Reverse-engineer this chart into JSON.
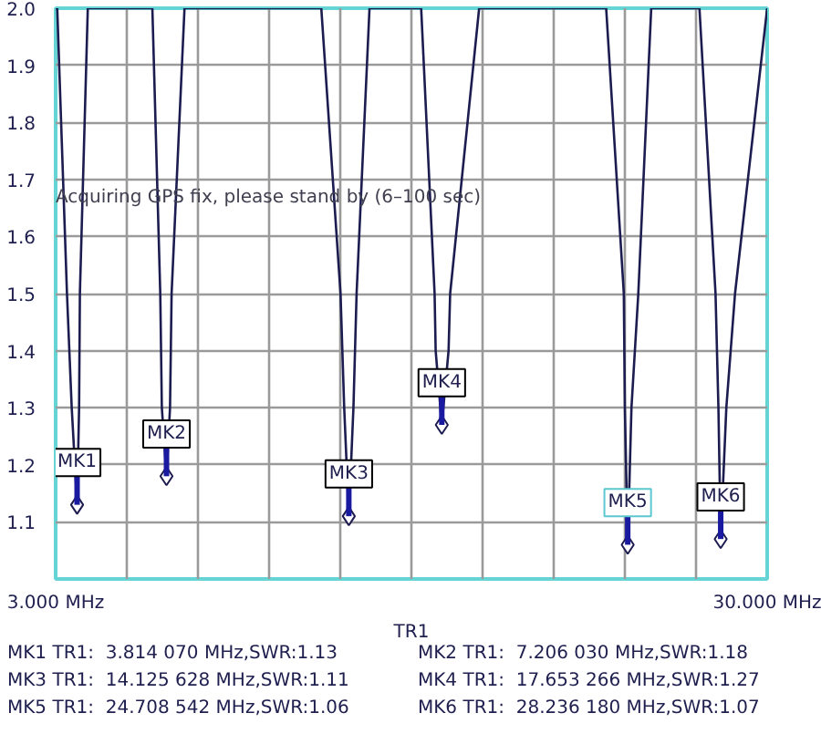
{
  "chart_data": {
    "type": "line",
    "xlabel": "TR1",
    "xlim": [
      3,
      30
    ],
    "xticks": [
      {
        "value": 3,
        "label": "3.000 MHz"
      },
      {
        "value": 5.7,
        "label": null
      },
      {
        "value": 8.4,
        "label": null
      },
      {
        "value": 11.1,
        "label": null
      },
      {
        "value": 13.8,
        "label": null
      },
      {
        "value": 16.5,
        "label": null
      },
      {
        "value": 19.2,
        "label": null
      },
      {
        "value": 21.9,
        "label": null
      },
      {
        "value": 24.6,
        "label": null
      },
      {
        "value": 27.3,
        "label": null
      },
      {
        "value": 30,
        "label": "30.000 MHz"
      }
    ],
    "ylim": [
      1.0,
      2.0
    ],
    "yticks": [
      {
        "value": 1.0,
        "label": null
      },
      {
        "value": 1.1,
        "label": "1.1"
      },
      {
        "value": 1.2,
        "label": "1.2"
      },
      {
        "value": 1.3,
        "label": "1.3"
      },
      {
        "value": 1.4,
        "label": "1.4"
      },
      {
        "value": 1.5,
        "label": "1.5"
      },
      {
        "value": 1.6,
        "label": "1.6"
      },
      {
        "value": 1.7,
        "label": "1.7"
      },
      {
        "value": 1.8,
        "label": "1.8"
      },
      {
        "value": 1.9,
        "label": "1.9"
      },
      {
        "value": 2.0,
        "label": "2.0"
      }
    ],
    "grid": true,
    "series": [
      {
        "color": "#1c1c50",
        "x": [
          3.0,
          3.06,
          3.43,
          3.61,
          3.814,
          3.89,
          3.92,
          4.22,
          6.67,
          6.97,
          7.03,
          7.206,
          7.34,
          7.4,
          7.89,
          13.08,
          13.81,
          13.95,
          14.125,
          14.3,
          14.42,
          14.91,
          16.87,
          17.38,
          17.42,
          17.653,
          17.91,
          17.97,
          19.07,
          23.89,
          24.56,
          24.6,
          24.708,
          24.85,
          25.11,
          25.6,
          27.43,
          28.04,
          28.15,
          28.236,
          28.45,
          28.78,
          30.0
        ],
        "values": [
          2.0,
          2.0,
          1.5,
          1.3,
          1.13,
          1.3,
          1.5,
          2.0,
          2.0,
          1.5,
          1.3,
          1.18,
          1.3,
          1.5,
          2.0,
          2.0,
          1.5,
          1.3,
          1.11,
          1.3,
          1.5,
          2.0,
          2.0,
          1.5,
          1.4,
          1.27,
          1.4,
          1.5,
          2.0,
          2.0,
          1.5,
          1.3,
          1.06,
          1.3,
          1.5,
          2.0,
          2.0,
          1.5,
          1.3,
          1.07,
          1.3,
          1.5,
          2.0
        ]
      },
      {
        "type": "scatter",
        "marker": "diamond",
        "color": "#1c1c50",
        "x": [
          3.814,
          7.206,
          14.125,
          17.653,
          24.708,
          28.236
        ],
        "values": [
          1.13,
          1.18,
          1.11,
          1.27,
          1.06,
          1.07
        ]
      }
    ],
    "annotations": [
      "Acquiring GPS fix, please stand by    (6–100 sec)",
      {
        "text": "MK1",
        "x": 3.814,
        "y": 1.13
      },
      {
        "text": "MK2",
        "x": 7.206,
        "y": 1.18
      },
      {
        "text": "MK3",
        "x": 14.125,
        "y": 1.11
      },
      {
        "text": "MK4",
        "x": 17.653,
        "y": 1.27
      },
      {
        "text": "MK5",
        "x": 24.708,
        "y": 1.06
      },
      {
        "text": "MK6",
        "x": 28.236,
        "y": 1.07
      },
      "MK1 TR1:  3.814 070 MHz,SWR:1.13",
      "MK2 TR1:  7.206 030 MHz,SWR:1.18",
      "MK3 TR1:  14.125 628 MHz,SWR:1.11",
      "MK4 TR1:  17.653 266 MHz,SWR:1.27",
      "MK5 TR1:  24.708 542 MHz,SWR:1.06",
      "MK6 TR1:  28.236 180 MHz,SWR:1.07"
    ]
  }
}
